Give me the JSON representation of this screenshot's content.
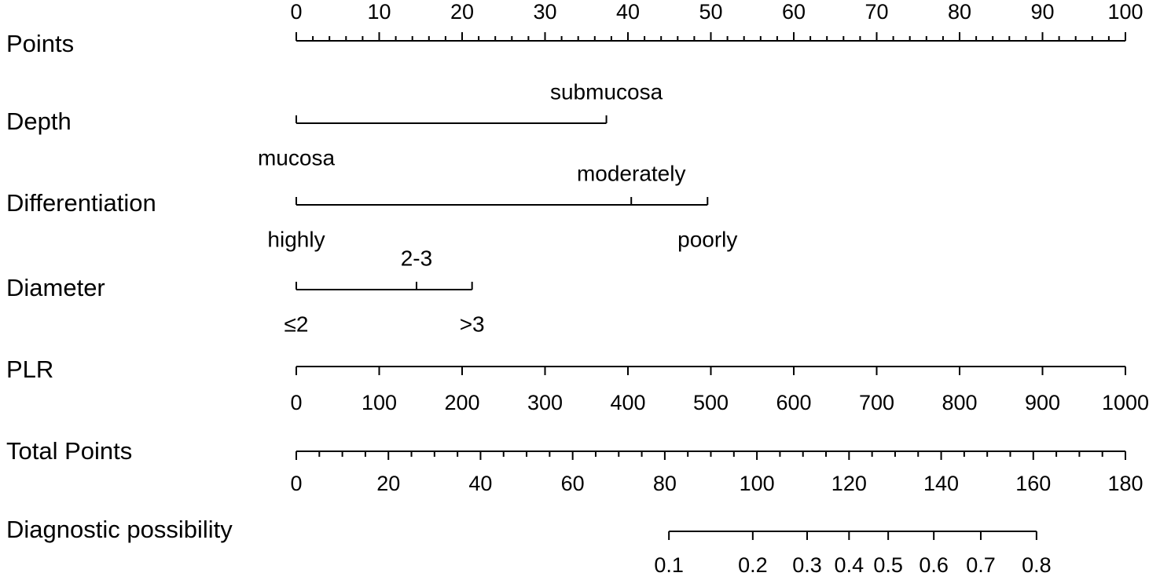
{
  "chart_data": {
    "type": "nomogram",
    "points": {
      "name": "Points",
      "xlim": [
        0,
        100
      ],
      "ticks": [
        0,
        10,
        20,
        30,
        40,
        50,
        60,
        70,
        80,
        90,
        100
      ],
      "minor_ticks": [
        2,
        4,
        6,
        8,
        12,
        14,
        16,
        18,
        22,
        24,
        26,
        28,
        32,
        34,
        36,
        38,
        42,
        44,
        46,
        48,
        52,
        54,
        56,
        58,
        62,
        64,
        66,
        68,
        72,
        74,
        76,
        78,
        82,
        84,
        86,
        88,
        92,
        94,
        96,
        98
      ]
    },
    "variables": [
      {
        "name": "Depth",
        "levels": [
          {
            "label": "mucosa",
            "points": 0
          },
          {
            "label": "submucosa",
            "points": 37.4
          }
        ]
      },
      {
        "name": "Differentiation",
        "levels": [
          {
            "label": "highly",
            "points": 0
          },
          {
            "label": "moderately",
            "points": 40.4
          },
          {
            "label": "poorly",
            "points": 49.6
          }
        ]
      },
      {
        "name": "Diameter",
        "levels": [
          {
            "label": "≤2",
            "points": 0
          },
          {
            "label": "2-3",
            "points": 14.5
          },
          {
            "label": ">3",
            "points": 21.2
          }
        ]
      }
    ],
    "continuous": [
      {
        "name": "PLR",
        "xlim": [
          0,
          1000
        ],
        "points_lim": [
          0,
          100
        ],
        "ticks": [
          0,
          100,
          200,
          300,
          400,
          500,
          600,
          700,
          800,
          900,
          1000
        ]
      }
    ],
    "total_points": {
      "name": "Total Points",
      "xlim": [
        0,
        180
      ],
      "ticks": [
        0,
        20,
        40,
        60,
        80,
        100,
        120,
        140,
        160,
        180
      ],
      "minor_ticks": [
        5,
        10,
        15,
        25,
        30,
        35,
        45,
        50,
        55,
        65,
        70,
        75,
        85,
        90,
        95,
        105,
        110,
        115,
        125,
        130,
        135,
        145,
        150,
        155,
        165,
        170,
        175
      ]
    },
    "outcome": {
      "name": "Diagnostic possibility",
      "ticks": [
        {
          "value": 0.1,
          "total_points": 80.9
        },
        {
          "value": 0.2,
          "total_points": 99.1
        },
        {
          "value": 0.3,
          "total_points": 110.9
        },
        {
          "value": 0.4,
          "total_points": 120.0
        },
        {
          "value": 0.5,
          "total_points": 128.5
        },
        {
          "value": 0.6,
          "total_points": 138.4
        },
        {
          "value": 0.7,
          "total_points": 148.6
        },
        {
          "value": 0.8,
          "total_points": 160.7
        }
      ]
    }
  }
}
